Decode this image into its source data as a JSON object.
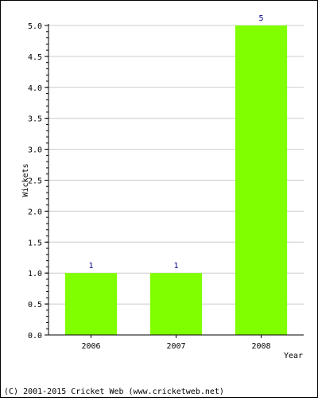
{
  "chart_data": {
    "type": "bar",
    "title": "",
    "xlabel": "Year",
    "ylabel": "Wickets",
    "categories": [
      "2006",
      "2007",
      "2008"
    ],
    "values": [
      1,
      1,
      5
    ],
    "data_labels": [
      "1",
      "1",
      "5"
    ],
    "ylim": [
      0,
      5
    ],
    "yticks": [
      "0.0",
      "0.5",
      "1.0",
      "1.5",
      "2.0",
      "2.5",
      "3.0",
      "3.5",
      "4.0",
      "4.5",
      "5.0"
    ],
    "grid": true,
    "legend": "none",
    "bar_color": "#80ff00",
    "label_color": "#00008b"
  },
  "footer": {
    "copyright": "(C) 2001-2015 Cricket Web (www.cricketweb.net)"
  }
}
